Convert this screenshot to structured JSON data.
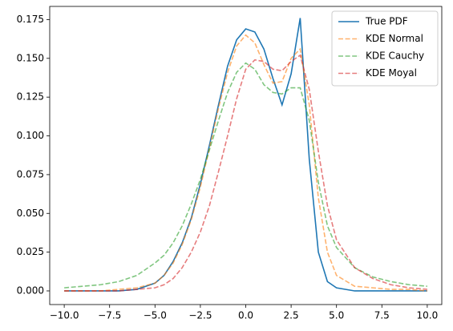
{
  "chart_data": {
    "type": "line",
    "x": [
      -10,
      -9,
      -8,
      -7,
      -6,
      -5,
      -4.5,
      -4,
      -3.5,
      -3,
      -2.5,
      -2,
      -1.5,
      -1,
      -0.5,
      0,
      0.5,
      1,
      1.5,
      2,
      2.5,
      3,
      3.5,
      4,
      4.5,
      5,
      6,
      7,
      8,
      9,
      10
    ],
    "series": [
      {
        "name": "True PDF",
        "color": "#1f77b4",
        "linestyle": "solid",
        "opacity": 1,
        "values": [
          0,
          0,
          0,
          0,
          0.001,
          0.005,
          0.01,
          0.019,
          0.031,
          0.047,
          0.069,
          0.094,
          0.12,
          0.145,
          0.162,
          0.169,
          0.167,
          0.156,
          0.137,
          0.12,
          0.14,
          0.176,
          0.085,
          0.025,
          0.006,
          0.002,
          0,
          0,
          0,
          0,
          0
        ]
      },
      {
        "name": "KDE Normal",
        "color": "#ff7f0e",
        "linestyle": "dashed",
        "opacity": 0.6,
        "values": [
          0,
          0,
          0,
          0.001,
          0.002,
          0.005,
          0.01,
          0.018,
          0.03,
          0.046,
          0.067,
          0.092,
          0.118,
          0.141,
          0.158,
          0.165,
          0.16,
          0.146,
          0.134,
          0.135,
          0.15,
          0.156,
          0.12,
          0.06,
          0.025,
          0.01,
          0.003,
          0.002,
          0.001,
          0.001,
          0
        ]
      },
      {
        "name": "KDE Cauchy",
        "color": "#2ca02c",
        "linestyle": "dashed",
        "opacity": 0.6,
        "values": [
          0.002,
          0.003,
          0.004,
          0.006,
          0.01,
          0.018,
          0.023,
          0.031,
          0.042,
          0.056,
          0.072,
          0.091,
          0.11,
          0.128,
          0.141,
          0.147,
          0.143,
          0.133,
          0.128,
          0.127,
          0.131,
          0.131,
          0.11,
          0.07,
          0.042,
          0.028,
          0.015,
          0.009,
          0.006,
          0.004,
          0.003
        ]
      },
      {
        "name": "KDE Moyal",
        "color": "#d62728",
        "linestyle": "dashed",
        "opacity": 0.6,
        "values": [
          0,
          0,
          0,
          0,
          0.001,
          0.002,
          0.004,
          0.008,
          0.015,
          0.025,
          0.038,
          0.055,
          0.077,
          0.1,
          0.124,
          0.143,
          0.149,
          0.148,
          0.143,
          0.142,
          0.148,
          0.152,
          0.13,
          0.09,
          0.055,
          0.033,
          0.015,
          0.008,
          0.004,
          0.002,
          0.001
        ]
      }
    ],
    "xlim": [
      -10.8,
      10.8
    ],
    "ylim": [
      -0.0088,
      0.1835
    ],
    "xticks": [
      {
        "value": -10,
        "label": "−10.0"
      },
      {
        "value": -7.5,
        "label": "−7.5"
      },
      {
        "value": -5,
        "label": "−5.0"
      },
      {
        "value": -2.5,
        "label": "−2.5"
      },
      {
        "value": 0,
        "label": "0.0"
      },
      2.5,
      {
        "value": 5,
        "label": "5.0"
      },
      7.5,
      {
        "value": 10,
        "label": "10.0"
      }
    ],
    "yticks": [
      {
        "value": 0,
        "label": "0.000"
      },
      0.025,
      {
        "value": 0.05,
        "label": "0.050"
      },
      0.075,
      {
        "value": 0.1,
        "label": "0.100"
      },
      0.125,
      {
        "value": 0.15,
        "label": "0.150"
      },
      0.175
    ],
    "legend": "upper right"
  }
}
